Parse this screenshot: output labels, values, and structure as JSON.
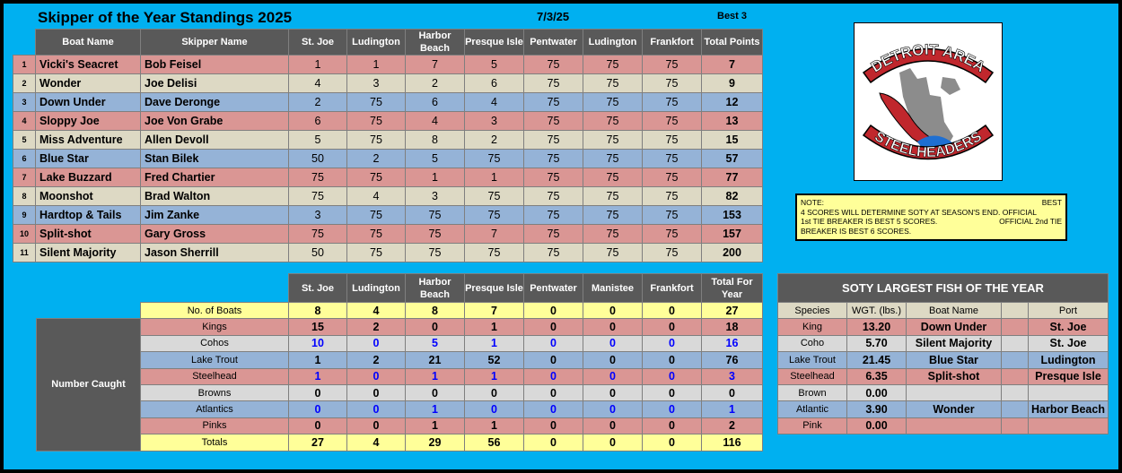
{
  "header": {
    "title": "Skipper of the Year Standings 2025",
    "date": "7/3/25",
    "best_label": "Best 3"
  },
  "standings": {
    "columns": [
      "Boat Name",
      "Skipper Name",
      "St. Joe",
      "Ludington",
      "Harbor Beach",
      "Presque Isle",
      "Pentwater",
      "Ludington",
      "Frankfort",
      "Total Points"
    ],
    "rows": [
      {
        "rank": "1",
        "boat": "Vicki's Seacret",
        "skipper": "Bob Feisel",
        "scores": [
          "1",
          "1",
          "7",
          "5",
          "75",
          "75",
          "75"
        ],
        "total": "7"
      },
      {
        "rank": "2",
        "boat": "Wonder",
        "skipper": "Joe Delisi",
        "scores": [
          "4",
          "3",
          "2",
          "6",
          "75",
          "75",
          "75"
        ],
        "total": "9"
      },
      {
        "rank": "3",
        "boat": "Down Under",
        "skipper": "Dave Deronge",
        "scores": [
          "2",
          "75",
          "6",
          "4",
          "75",
          "75",
          "75"
        ],
        "total": "12"
      },
      {
        "rank": "4",
        "boat": "Sloppy Joe",
        "skipper": "Joe Von Grabe",
        "scores": [
          "6",
          "75",
          "4",
          "3",
          "75",
          "75",
          "75"
        ],
        "total": "13"
      },
      {
        "rank": "5",
        "boat": "Miss Adventure",
        "skipper": "Allen Devoll",
        "scores": [
          "5",
          "75",
          "8",
          "2",
          "75",
          "75",
          "75"
        ],
        "total": "15"
      },
      {
        "rank": "6",
        "boat": "Blue Star",
        "skipper": "Stan Bilek",
        "scores": [
          "50",
          "2",
          "5",
          "75",
          "75",
          "75",
          "75"
        ],
        "total": "57"
      },
      {
        "rank": "7",
        "boat": "Lake Buzzard",
        "skipper": "Fred Chartier",
        "scores": [
          "75",
          "75",
          "1",
          "1",
          "75",
          "75",
          "75"
        ],
        "total": "77"
      },
      {
        "rank": "8",
        "boat": "Moonshot",
        "skipper": "Brad Walton",
        "scores": [
          "75",
          "4",
          "3",
          "75",
          "75",
          "75",
          "75"
        ],
        "total": "82"
      },
      {
        "rank": "9",
        "boat": "Hardtop & Tails",
        "skipper": "Jim Zanke",
        "scores": [
          "3",
          "75",
          "75",
          "75",
          "75",
          "75",
          "75"
        ],
        "total": "153"
      },
      {
        "rank": "10",
        "boat": "Split-shot",
        "skipper": "Gary Gross",
        "scores": [
          "75",
          "75",
          "75",
          "7",
          "75",
          "75",
          "75"
        ],
        "total": "157"
      },
      {
        "rank": "11",
        "boat": "Silent Majority",
        "skipper": "Jason Sherrill",
        "scores": [
          "50",
          "75",
          "75",
          "75",
          "75",
          "75",
          "75"
        ],
        "total": "200"
      }
    ]
  },
  "caught": {
    "columns": [
      "St. Joe",
      "Ludington",
      "Harbor Beach",
      "Presque Isle",
      "Pentwater",
      "Manistee",
      "Frankfort",
      "Total For Year"
    ],
    "group_label": "Number Caught",
    "boats_row": {
      "label": "No. of Boats",
      "values": [
        "8",
        "4",
        "8",
        "7",
        "0",
        "0",
        "0",
        "27"
      ]
    },
    "rows": [
      {
        "label": "Kings",
        "values": [
          "15",
          "2",
          "0",
          "1",
          "0",
          "0",
          "0",
          "18"
        ]
      },
      {
        "label": "Cohos",
        "values": [
          "10",
          "0",
          "5",
          "1",
          "0",
          "0",
          "0",
          "16"
        ]
      },
      {
        "label": "Lake Trout",
        "values": [
          "1",
          "2",
          "21",
          "52",
          "0",
          "0",
          "0",
          "76"
        ]
      },
      {
        "label": "Steelhead",
        "values": [
          "1",
          "0",
          "1",
          "1",
          "0",
          "0",
          "0",
          "3"
        ]
      },
      {
        "label": "Browns",
        "values": [
          "0",
          "0",
          "0",
          "0",
          "0",
          "0",
          "0",
          "0"
        ]
      },
      {
        "label": "Atlantics",
        "values": [
          "0",
          "0",
          "1",
          "0",
          "0",
          "0",
          "0",
          "1"
        ]
      },
      {
        "label": "Pinks",
        "values": [
          "0",
          "0",
          "1",
          "1",
          "0",
          "0",
          "0",
          "2"
        ]
      }
    ],
    "totals_row": {
      "label": "Totals",
      "values": [
        "27",
        "4",
        "29",
        "56",
        "0",
        "0",
        "0",
        "116"
      ]
    }
  },
  "fish": {
    "title": "SOTY LARGEST FISH OF THE YEAR",
    "columns": [
      "Species",
      "WGT. (lbs.)",
      "Boat Name",
      "",
      "Port"
    ],
    "rows": [
      {
        "species": "King",
        "wgt": "13.20",
        "boat": "Down Under",
        "port": "St. Joe"
      },
      {
        "species": "Coho",
        "wgt": "5.70",
        "boat": "Silent Majority",
        "port": "St. Joe"
      },
      {
        "species": "Lake Trout",
        "wgt": "21.45",
        "boat": "Blue Star",
        "port": "Ludington"
      },
      {
        "species": "Steelhead",
        "wgt": "6.35",
        "boat": "Split-shot",
        "port": "Presque Isle"
      },
      {
        "species": "Brown",
        "wgt": "0.00",
        "boat": "",
        "port": ""
      },
      {
        "species": "Atlantic",
        "wgt": "3.90",
        "boat": "Wonder",
        "port": "Harbor Beach"
      },
      {
        "species": "Pink",
        "wgt": "0.00",
        "boat": "",
        "port": ""
      }
    ]
  },
  "note": {
    "line1_left": "NOTE:",
    "line1_right": "BEST",
    "line2": "4 SCORES WILL DETERMINE SOTY AT SEASON'S END. OFFICIAL",
    "line3_left": "1st TIE BREAKER IS BEST 5 SCORES.",
    "line3_right": "OFFICIAL  2nd TIE",
    "line4": "BREAKER IS BEST 6 SCORES."
  },
  "logo": {
    "top_text": "DETROIT AREA",
    "bottom_text": "STEELHEADERS",
    "colors": {
      "red": "#c0272d",
      "gray": "#8c8c8c",
      "blue": "#1f6fd1"
    }
  },
  "colors": {
    "background": "#00b0f0",
    "header": "#595959",
    "pink": "#da9694",
    "tan": "#ddd9c4",
    "blue": "#95b3d7",
    "yellow": "#ffff99"
  }
}
